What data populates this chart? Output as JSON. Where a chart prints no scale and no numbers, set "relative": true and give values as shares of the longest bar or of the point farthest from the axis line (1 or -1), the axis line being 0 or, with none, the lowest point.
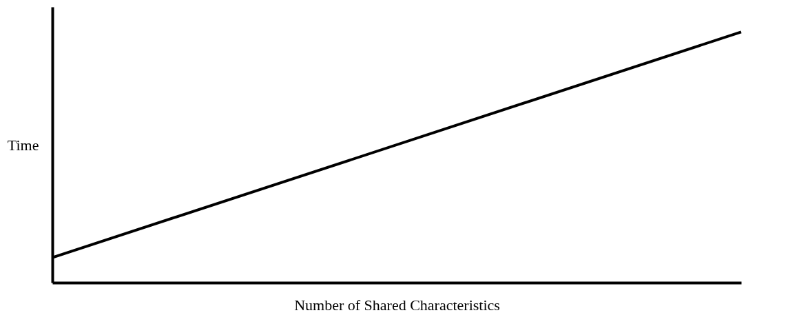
{
  "chart_data": {
    "type": "line",
    "relative": true,
    "xlabel": "Number of Shared Characteristics",
    "ylabel": "Time",
    "categories": [
      null,
      null
    ],
    "series": [
      {
        "color": "#000000",
        "values": [
          0.1,
          1
        ]
      }
    ],
    "grid": false,
    "tick_labels": false,
    "marker": "none",
    "line_style": "solid"
  }
}
